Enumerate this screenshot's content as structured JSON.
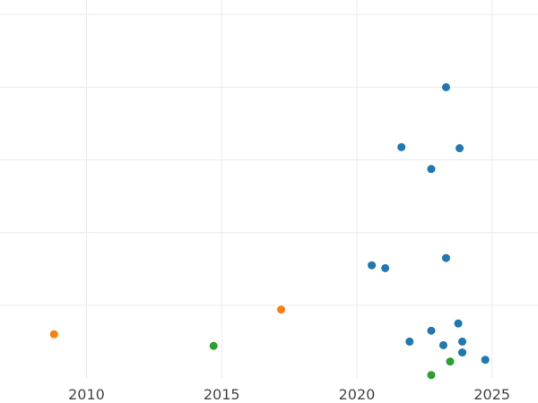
{
  "chart_data": {
    "type": "scatter",
    "title": "",
    "xlabel": "",
    "ylabel": "",
    "grid": true,
    "legend": "none",
    "xlim": [
      2006.8,
      2026.7
    ],
    "ylim": [
      0.0,
      1.04
    ],
    "x_ticks": [
      2010,
      2015,
      2020,
      2025
    ],
    "y_gridlines": [
      0.2,
      0.4,
      0.6,
      0.8,
      1.0
    ],
    "series": [
      {
        "color": "#1f77b4",
        "points": [
          {
            "x": 2023.3,
            "y": 0.8
          },
          {
            "x": 2021.65,
            "y": 0.635
          },
          {
            "x": 2023.8,
            "y": 0.632
          },
          {
            "x": 2022.75,
            "y": 0.575
          },
          {
            "x": 2023.3,
            "y": 0.33
          },
          {
            "x": 2020.55,
            "y": 0.31
          },
          {
            "x": 2021.05,
            "y": 0.302
          },
          {
            "x": 2023.75,
            "y": 0.15
          },
          {
            "x": 2022.75,
            "y": 0.13
          },
          {
            "x": 2021.95,
            "y": 0.1
          },
          {
            "x": 2023.2,
            "y": 0.09
          },
          {
            "x": 2023.9,
            "y": 0.1
          },
          {
            "x": 2023.9,
            "y": 0.07
          },
          {
            "x": 2024.75,
            "y": 0.05
          }
        ]
      },
      {
        "color": "#ff7f0e",
        "points": [
          {
            "x": 2008.8,
            "y": 0.12
          },
          {
            "x": 2017.2,
            "y": 0.188
          }
        ]
      },
      {
        "color": "#2ca02c",
        "points": [
          {
            "x": 2014.7,
            "y": 0.088
          },
          {
            "x": 2023.45,
            "y": 0.045
          },
          {
            "x": 2022.75,
            "y": 0.008
          }
        ]
      }
    ]
  }
}
